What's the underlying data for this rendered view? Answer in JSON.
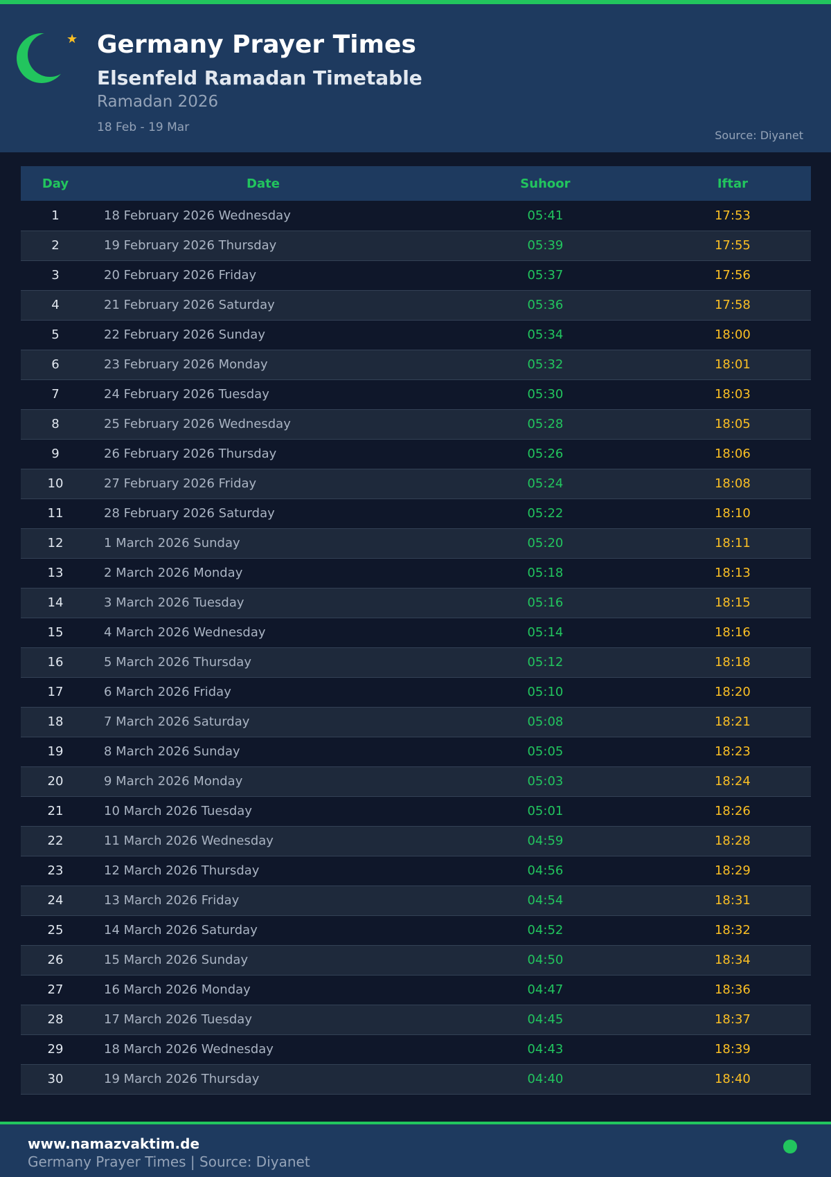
{
  "header": {
    "title": "Germany Prayer Times",
    "subtitle": "Elsenfeld Ramadan Timetable",
    "ramadan": "Ramadan 2026",
    "range": "18 Feb - 19 Mar",
    "source": "Source: Diyanet",
    "icon": "crescent-star-icon"
  },
  "table": {
    "columns": [
      "Day",
      "Date",
      "Suhoor",
      "Iftar"
    ],
    "rows": [
      [
        "1",
        "18 February 2026 Wednesday",
        "05:41",
        "17:53"
      ],
      [
        "2",
        "19 February 2026 Thursday",
        "05:39",
        "17:55"
      ],
      [
        "3",
        "20 February 2026 Friday",
        "05:37",
        "17:56"
      ],
      [
        "4",
        "21 February 2026 Saturday",
        "05:36",
        "17:58"
      ],
      [
        "5",
        "22 February 2026 Sunday",
        "05:34",
        "18:00"
      ],
      [
        "6",
        "23 February 2026 Monday",
        "05:32",
        "18:01"
      ],
      [
        "7",
        "24 February 2026 Tuesday",
        "05:30",
        "18:03"
      ],
      [
        "8",
        "25 February 2026 Wednesday",
        "05:28",
        "18:05"
      ],
      [
        "9",
        "26 February 2026 Thursday",
        "05:26",
        "18:06"
      ],
      [
        "10",
        "27 February 2026 Friday",
        "05:24",
        "18:08"
      ],
      [
        "11",
        "28 February 2026 Saturday",
        "05:22",
        "18:10"
      ],
      [
        "12",
        "1 March 2026 Sunday",
        "05:20",
        "18:11"
      ],
      [
        "13",
        "2 March 2026 Monday",
        "05:18",
        "18:13"
      ],
      [
        "14",
        "3 March 2026 Tuesday",
        "05:16",
        "18:15"
      ],
      [
        "15",
        "4 March 2026 Wednesday",
        "05:14",
        "18:16"
      ],
      [
        "16",
        "5 March 2026 Thursday",
        "05:12",
        "18:18"
      ],
      [
        "17",
        "6 March 2026 Friday",
        "05:10",
        "18:20"
      ],
      [
        "18",
        "7 March 2026 Saturday",
        "05:08",
        "18:21"
      ],
      [
        "19",
        "8 March 2026 Sunday",
        "05:05",
        "18:23"
      ],
      [
        "20",
        "9 March 2026 Monday",
        "05:03",
        "18:24"
      ],
      [
        "21",
        "10 March 2026 Tuesday",
        "05:01",
        "18:26"
      ],
      [
        "22",
        "11 March 2026 Wednesday",
        "04:59",
        "18:28"
      ],
      [
        "23",
        "12 March 2026 Thursday",
        "04:56",
        "18:29"
      ],
      [
        "24",
        "13 March 2026 Friday",
        "04:54",
        "18:31"
      ],
      [
        "25",
        "14 March 2026 Saturday",
        "04:52",
        "18:32"
      ],
      [
        "26",
        "15 March 2026 Sunday",
        "04:50",
        "18:34"
      ],
      [
        "27",
        "16 March 2026 Monday",
        "04:47",
        "18:36"
      ],
      [
        "28",
        "17 March 2026 Tuesday",
        "04:45",
        "18:37"
      ],
      [
        "29",
        "18 March 2026 Wednesday",
        "04:43",
        "18:39"
      ],
      [
        "30",
        "19 March 2026 Thursday",
        "04:40",
        "18:40"
      ]
    ]
  },
  "footer": {
    "site": "www.namazvaktim.de",
    "text": "Germany Prayer Times | Source: Diyanet"
  },
  "colors": {
    "accent": "#22c55e",
    "iftar": "#fbbf24",
    "header_bg": "#1e3a5f",
    "page_bg": "#0f172a"
  }
}
